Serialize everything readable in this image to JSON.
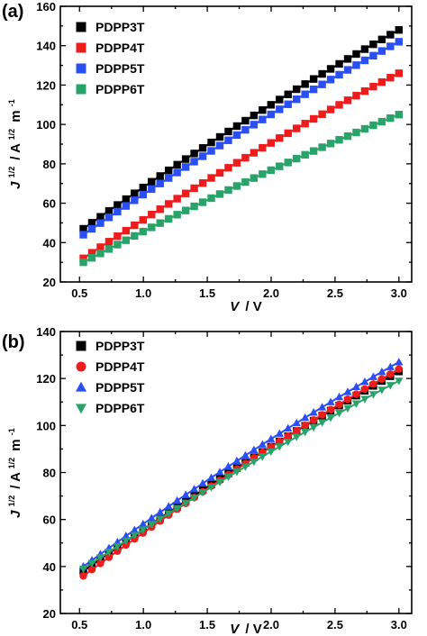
{
  "chart_data": [
    {
      "type": "scatter",
      "panel_label": "(a)",
      "xlabel_var": "V",
      "xlabel_unit": "/ V",
      "ylabel": {
        "var": "J",
        "var_sup": "1/2",
        "unit": "/ A",
        "unit_sup": "1/2",
        "unit2": "m",
        "unit2_sup": "-1"
      },
      "xlim": [
        0.35,
        3.1
      ],
      "ylim": [
        20,
        160
      ],
      "xticks": [
        0.5,
        1.0,
        1.5,
        2.0,
        2.5,
        3.0
      ],
      "xtick_labels": [
        "0.5",
        "1.0",
        "1.5",
        "2.0",
        "2.5",
        "3.0"
      ],
      "yticks": [
        20,
        40,
        60,
        80,
        100,
        120,
        140,
        160
      ],
      "ytick_labels": [
        "20",
        "40",
        "60",
        "80",
        "100",
        "120",
        "140",
        "160"
      ],
      "grid": false,
      "legend_position": "top-left",
      "fit_lines": true,
      "series": [
        {
          "name": "PDPP3T",
          "color": "#000000",
          "marker": "square",
          "start": 47,
          "end": 148
        },
        {
          "name": "PDPP4T",
          "color": "#ee1c1c",
          "marker": "square",
          "start": 32,
          "end": 126
        },
        {
          "name": "PDPP5T",
          "color": "#2a4ff5",
          "marker": "square",
          "start": 44,
          "end": 142
        },
        {
          "name": "PDPP6T",
          "color": "#2aa36a",
          "marker": "square",
          "start": 30,
          "end": 105
        }
      ],
      "x_start": 0.53,
      "x_end": 3.0,
      "points_per_series": 38
    },
    {
      "type": "scatter",
      "panel_label": "(b)",
      "xlabel_var": "V",
      "xlabel_unit": "/ V",
      "ylabel": {
        "var": "J",
        "var_sup": "1/2",
        "unit": "/ A",
        "unit_sup": "1/2",
        "unit2": "m",
        "unit2_sup": "-1"
      },
      "xlim": [
        0.35,
        3.1
      ],
      "ylim": [
        20,
        140
      ],
      "xticks": [
        0.5,
        1.0,
        1.5,
        2.0,
        2.5,
        3.0
      ],
      "xtick_labels": [
        "0.5",
        "1.0",
        "1.5",
        "2.0",
        "2.5",
        "3.0"
      ],
      "yticks": [
        20,
        40,
        60,
        80,
        100,
        120,
        140
      ],
      "ytick_labels": [
        "20",
        "40",
        "60",
        "80",
        "100",
        "120",
        "140"
      ],
      "grid": false,
      "legend_position": "top-left",
      "fit_lines": true,
      "series": [
        {
          "name": "PDPP3T",
          "color": "#000000",
          "marker": "square",
          "start": 38,
          "end": 123
        },
        {
          "name": "PDPP4T",
          "color": "#ee1c1c",
          "marker": "circle",
          "start": 36,
          "end": 124
        },
        {
          "name": "PDPP5T",
          "color": "#2a4ff5",
          "marker": "triangle-up",
          "start": 40,
          "end": 127
        },
        {
          "name": "PDPP6T",
          "color": "#2aa36a",
          "marker": "triangle-down",
          "start": 39,
          "end": 119
        }
      ],
      "x_start": 0.53,
      "x_end": 3.0,
      "points_per_series": 38
    }
  ]
}
